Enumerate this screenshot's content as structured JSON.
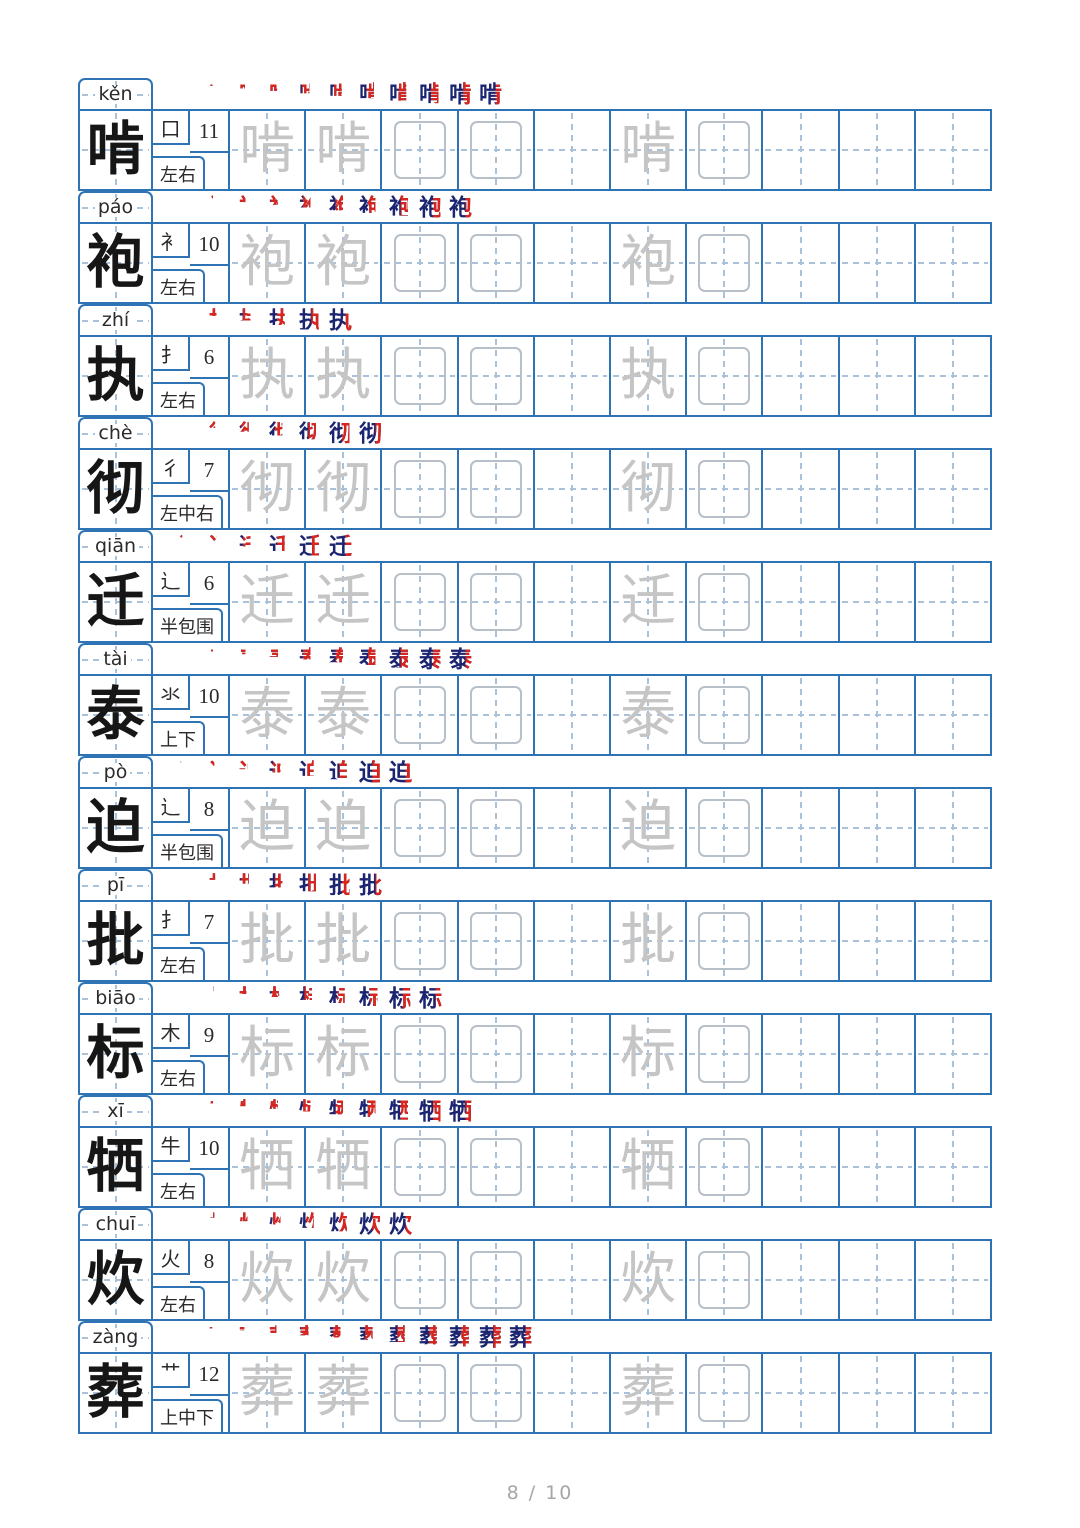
{
  "page": {
    "footer": "8 / 10"
  },
  "colors": {
    "grid_blue": "#2e74b5",
    "guide_dash": "#a9c2da",
    "stroke_navy": "#1b2470",
    "stroke_red": "#d9251c",
    "trace_gray": "#c5c5c5",
    "empty_box_gray": "#b7bfc8"
  },
  "practice_pattern": [
    "trace",
    "trace",
    "box",
    "box",
    "empty",
    "trace",
    "box",
    "empty",
    "empty",
    "empty"
  ],
  "characters": [
    {
      "pinyin": "kěn",
      "char": "啃",
      "radical": "口",
      "strokes": 11,
      "structure": "左右"
    },
    {
      "pinyin": "páo",
      "char": "袍",
      "radical": "衤",
      "strokes": 10,
      "structure": "左右"
    },
    {
      "pinyin": "zhí",
      "char": "执",
      "radical": "扌",
      "strokes": 6,
      "structure": "左右"
    },
    {
      "pinyin": "chè",
      "char": "彻",
      "radical": "彳",
      "strokes": 7,
      "structure": "左中右"
    },
    {
      "pinyin": "qiān",
      "char": "迁",
      "radical": "辶",
      "strokes": 6,
      "structure": "半包围"
    },
    {
      "pinyin": "tài",
      "char": "泰",
      "radical": "氺",
      "strokes": 10,
      "structure": "上下"
    },
    {
      "pinyin": "pò",
      "char": "迫",
      "radical": "辶",
      "strokes": 8,
      "structure": "半包围"
    },
    {
      "pinyin": "pī",
      "char": "批",
      "radical": "扌",
      "strokes": 7,
      "structure": "左右"
    },
    {
      "pinyin": "biāo",
      "char": "标",
      "radical": "木",
      "strokes": 9,
      "structure": "左右"
    },
    {
      "pinyin": "xī",
      "char": "牺",
      "radical": "牛",
      "strokes": 10,
      "structure": "左右"
    },
    {
      "pinyin": "chuī",
      "char": "炊",
      "radical": "火",
      "strokes": 8,
      "structure": "左右"
    },
    {
      "pinyin": "zàng",
      "char": "葬",
      "radical": "艹",
      "strokes": 12,
      "structure": "上中下"
    }
  ]
}
